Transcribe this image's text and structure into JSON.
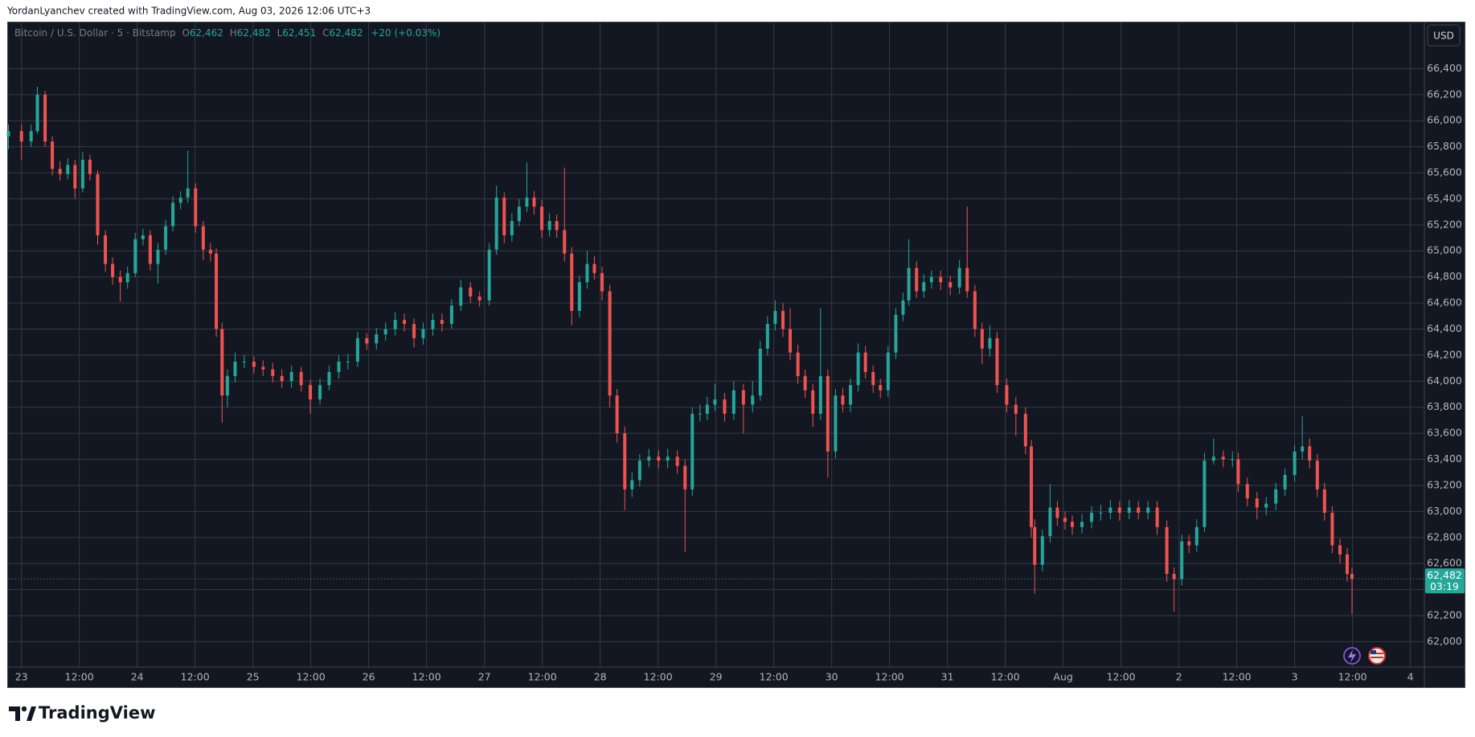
{
  "attribution": "YordanLyanchev created with TradingView.com, Aug 03, 2026 12:06 UTC+3",
  "branding": {
    "logo": "TradingView"
  },
  "currency": "USD",
  "chart_data": {
    "type": "candlestick",
    "header": {
      "symbol": "Bitcoin / U.S. Dollar · 5 · Bitstamp",
      "open_key": "O",
      "open": "62,462",
      "high_key": "H",
      "high": "62,482",
      "low_key": "L",
      "low": "62,451",
      "close_key": "C",
      "close": "62,482",
      "change": "+20 (+0.03%)"
    },
    "up_color": "#26a69a",
    "down_color": "#ef5350",
    "grid": true,
    "grid_color": "#363a45",
    "last_price": {
      "value": 62482,
      "label": "62,482",
      "countdown": "03:19"
    },
    "xlim": [
      -2.7,
      290.9
    ],
    "ylim": [
      61805,
      66754
    ],
    "xticks": [
      {
        "value": 0,
        "label": "23"
      },
      {
        "value": 12,
        "label": "12:00"
      },
      {
        "value": 24,
        "label": "24"
      },
      {
        "value": 36,
        "label": "12:00"
      },
      {
        "value": 48,
        "label": "25"
      },
      {
        "value": 60,
        "label": "12:00"
      },
      {
        "value": 72,
        "label": "26"
      },
      {
        "value": 84,
        "label": "12:00"
      },
      {
        "value": 96,
        "label": "27"
      },
      {
        "value": 108,
        "label": "12:00"
      },
      {
        "value": 120,
        "label": "28"
      },
      {
        "value": 132,
        "label": "12:00"
      },
      {
        "value": 144,
        "label": "29"
      },
      {
        "value": 156,
        "label": "12:00"
      },
      {
        "value": 168,
        "label": "30"
      },
      {
        "value": 180,
        "label": "12:00"
      },
      {
        "value": 192,
        "label": "31"
      },
      {
        "value": 204,
        "label": "12:00"
      },
      {
        "value": 216,
        "label": "Aug"
      },
      {
        "value": 228,
        "label": "12:00"
      },
      {
        "value": 240,
        "label": "2"
      },
      {
        "value": 252,
        "label": "12:00"
      },
      {
        "value": 264,
        "label": "3"
      },
      {
        "value": 276,
        "label": "12:00"
      },
      {
        "value": 288,
        "label": "4"
      }
    ],
    "yticks": [
      {
        "value": 62000,
        "label": "62,000"
      },
      {
        "value": 62200,
        "label": "62,200"
      },
      {
        "value": 62400,
        "label": "62,400"
      },
      {
        "value": 62600,
        "label": "62,600"
      },
      {
        "value": 62800,
        "label": "62,800"
      },
      {
        "value": 63000,
        "label": "63,000"
      },
      {
        "value": 63200,
        "label": "63,200"
      },
      {
        "value": 63400,
        "label": "63,400"
      },
      {
        "value": 63600,
        "label": "63,600"
      },
      {
        "value": 63800,
        "label": "63,800"
      },
      {
        "value": 64000,
        "label": "64,000"
      },
      {
        "value": 64200,
        "label": "64,200"
      },
      {
        "value": 64400,
        "label": "64,400"
      },
      {
        "value": 64600,
        "label": "64,600"
      },
      {
        "value": 64800,
        "label": "64,800"
      },
      {
        "value": 65000,
        "label": "65,000"
      },
      {
        "value": 65200,
        "label": "65,200"
      },
      {
        "value": 65400,
        "label": "65,400"
      },
      {
        "value": 65600,
        "label": "65,600"
      },
      {
        "value": 65800,
        "label": "65,800"
      },
      {
        "value": 66000,
        "label": "66,000"
      },
      {
        "value": 66200,
        "label": "66,200"
      },
      {
        "value": 66400,
        "label": "66,400"
      }
    ],
    "x": [
      -2.7,
      0,
      2.0,
      3.3,
      4.9,
      6.4,
      8.0,
      9.6,
      11.1,
      12.7,
      14.2,
      15.8,
      17.4,
      18.9,
      20.5,
      22.0,
      23.6,
      25.2,
      26.7,
      28.3,
      29.9,
      31.4,
      33.0,
      34.5,
      36.1,
      37.7,
      39.2,
      40.4,
      41.6,
      42.7,
      44.3,
      46.2,
      48.2,
      50.1,
      52.1,
      54.0,
      56.0,
      58.0,
      59.9,
      61.9,
      63.8,
      65.8,
      67.7,
      69.7,
      71.6,
      73.6,
      75.5,
      77.5,
      79.4,
      81.4,
      83.3,
      85.3,
      87.2,
      89.2,
      91.1,
      93.1,
      95.0,
      97.0,
      98.5,
      100.1,
      101.7,
      103.2,
      104.8,
      106.3,
      107.9,
      109.5,
      111.0,
      112.6,
      114.1,
      115.7,
      117.3,
      118.8,
      120.4,
      122.0,
      123.5,
      125.1,
      126.6,
      128.2,
      130.1,
      132.1,
      134.0,
      136.0,
      137.6,
      139.1,
      140.7,
      142.2,
      143.8,
      145.8,
      147.7,
      149.7,
      151.6,
      153.2,
      154.7,
      156.3,
      157.9,
      159.4,
      161.0,
      162.5,
      164.1,
      165.7,
      167.2,
      168.8,
      170.3,
      171.9,
      173.5,
      175.0,
      176.6,
      178.1,
      179.7,
      181.3,
      182.8,
      184.0,
      185.6,
      187.1,
      188.7,
      190.6,
      192.6,
      194.5,
      196.1,
      197.7,
      199.2,
      200.8,
      202.3,
      204.3,
      206.2,
      208.2,
      209.4,
      210.1,
      211.7,
      213.3,
      214.8,
      216.4,
      217.9,
      219.9,
      221.9,
      223.8,
      225.8,
      227.7,
      229.7,
      231.6,
      233.6,
      235.5,
      237.5,
      239.0,
      240.6,
      242.1,
      243.7,
      245.3,
      247.2,
      249.2,
      251.1,
      252.3,
      254.2,
      256.2,
      258.1,
      260.1,
      262.0,
      264.0,
      265.6,
      267.1,
      268.7,
      270.2,
      271.8,
      273.4,
      274.9,
      275.9
    ],
    "open": [
      65880,
      65920,
      65840,
      65920,
      66200,
      65840,
      65630,
      65590,
      65660,
      65480,
      65700,
      65590,
      65120,
      64900,
      64800,
      64760,
      64830,
      65090,
      65120,
      64900,
      65010,
      65190,
      65370,
      65410,
      65480,
      65190,
      65010,
      64980,
      64400,
      63890,
      64040,
      64150,
      64150,
      64110,
      64090,
      64040,
      64000,
      64070,
      63970,
      63860,
      63970,
      64070,
      64150,
      64150,
      64330,
      64290,
      64360,
      64400,
      64470,
      64440,
      64330,
      64400,
      64470,
      64440,
      64580,
      64720,
      64650,
      64620,
      65010,
      65410,
      65120,
      65230,
      65340,
      65410,
      65340,
      65160,
      65230,
      65160,
      64980,
      64540,
      64760,
      64900,
      64830,
      64690,
      63890,
      63600,
      63170,
      63240,
      63390,
      63420,
      63390,
      63420,
      63350,
      63170,
      63750,
      63750,
      63820,
      63860,
      63750,
      63930,
      63820,
      63890,
      64250,
      64440,
      64540,
      64400,
      64220,
      64040,
      63930,
      63750,
      64040,
      63460,
      63890,
      63820,
      63970,
      64220,
      64070,
      63970,
      63930,
      64220,
      64510,
      64620,
      64870,
      64690,
      64760,
      64800,
      64760,
      64720,
      64870,
      64690,
      64400,
      64250,
      64330,
      63970,
      63820,
      63750,
      63500,
      62880,
      62590,
      62810,
      63030,
      62950,
      62920,
      62880,
      62920,
      62990,
      62990,
      63030,
      62990,
      63030,
      62990,
      63030,
      62880,
      62520,
      62480,
      62770,
      62740,
      62880,
      63390,
      63420,
      63400,
      63400,
      63210,
      63100,
      63030,
      63060,
      63170,
      63280,
      63460,
      63500,
      63390,
      63170,
      62990,
      62740,
      62670,
      62520
    ],
    "high": [
      65970,
      65970,
      65970,
      66260,
      66230,
      65880,
      65690,
      65710,
      65700,
      65760,
      65740,
      65620,
      65160,
      64950,
      64850,
      64880,
      65140,
      65170,
      65160,
      65060,
      65240,
      65420,
      65460,
      65770,
      65520,
      65230,
      65060,
      65020,
      64450,
      64090,
      64220,
      64200,
      64190,
      64160,
      64140,
      64090,
      64120,
      64110,
      64010,
      64020,
      64120,
      64200,
      64210,
      64380,
      64370,
      64410,
      64450,
      64530,
      64520,
      64480,
      64450,
      64520,
      64520,
      64630,
      64780,
      64760,
      64690,
      65060,
      65500,
      65450,
      65290,
      65400,
      65680,
      65460,
      65390,
      65290,
      65280,
      65640,
      65030,
      64810,
      65000,
      64960,
      64880,
      64740,
      63940,
      63650,
      63300,
      63440,
      63480,
      63470,
      63480,
      63470,
      63400,
      63800,
      63820,
      63880,
      63980,
      63910,
      64000,
      63980,
      64000,
      64310,
      64500,
      64620,
      64600,
      64560,
      64280,
      64090,
      63980,
      64560,
      64090,
      63940,
      63950,
      64020,
      64290,
      64270,
      64120,
      64020,
      64270,
      64560,
      64680,
      65090,
      64920,
      64820,
      64850,
      64850,
      64810,
      64930,
      65340,
      64740,
      64450,
      64430,
      64380,
      64020,
      63880,
      63800,
      63550,
      62940,
      62860,
      63210,
      63080,
      63000,
      62970,
      62980,
      63040,
      63050,
      63090,
      63080,
      63090,
      63080,
      63080,
      63080,
      62930,
      62570,
      62820,
      62820,
      62940,
      63450,
      63560,
      63470,
      63460,
      63450,
      63260,
      63150,
      63110,
      63220,
      63330,
      63510,
      63730,
      63560,
      63440,
      63220,
      63040,
      62790,
      62720,
      62570
    ],
    "low": [
      65780,
      65700,
      65800,
      65900,
      65800,
      65580,
      65540,
      65550,
      65400,
      65450,
      65540,
      65050,
      64840,
      64740,
      64610,
      64710,
      64800,
      65040,
      64850,
      64750,
      64970,
      65150,
      65320,
      65370,
      65140,
      64930,
      64920,
      64340,
      63680,
      63800,
      63990,
      64100,
      64060,
      64040,
      63990,
      63950,
      63950,
      63920,
      63750,
      63820,
      63930,
      64020,
      64090,
      64110,
      64240,
      64240,
      64310,
      64350,
      64380,
      64260,
      64280,
      64350,
      64380,
      64400,
      64540,
      64600,
      64570,
      64580,
      64970,
      65060,
      65070,
      65190,
      65300,
      65280,
      65100,
      65110,
      65100,
      64920,
      64430,
      64490,
      64710,
      64780,
      64620,
      63800,
      63530,
      63010,
      63110,
      63190,
      63340,
      63330,
      63330,
      63290,
      62690,
      63120,
      63690,
      63700,
      63770,
      63690,
      63700,
      63600,
      63760,
      63850,
      64200,
      64390,
      64340,
      64160,
      63980,
      63870,
      63650,
      63700,
      63260,
      63410,
      63760,
      63760,
      63920,
      64020,
      63910,
      63870,
      63880,
      64170,
      64460,
      64580,
      64640,
      64640,
      64710,
      64700,
      64660,
      64670,
      64640,
      64340,
      64130,
      64190,
      63910,
      63760,
      63580,
      63440,
      62800,
      62370,
      62540,
      62760,
      62890,
      62860,
      62820,
      62830,
      62870,
      62930,
      62940,
      62930,
      62940,
      62940,
      62940,
      62820,
      62460,
      62230,
      62430,
      62680,
      62690,
      62840,
      63360,
      63340,
      63340,
      63150,
      63040,
      62940,
      62970,
      63010,
      63120,
      63230,
      63400,
      63330,
      63110,
      62930,
      62680,
      62600,
      62460,
      62210
    ],
    "close": [
      65920,
      65840,
      65920,
      66200,
      65840,
      65630,
      65590,
      65660,
      65480,
      65700,
      65590,
      65120,
      64900,
      64800,
      64760,
      64830,
      65090,
      65120,
      64900,
      65010,
      65190,
      65370,
      65410,
      65480,
      65190,
      65010,
      64980,
      64400,
      63890,
      64040,
      64150,
      64150,
      64110,
      64090,
      64040,
      64000,
      64070,
      63970,
      63860,
      63970,
      64070,
      64150,
      64150,
      64330,
      64290,
      64360,
      64400,
      64470,
      64440,
      64330,
      64400,
      64470,
      64440,
      64580,
      64720,
      64650,
      64620,
      65010,
      65410,
      65120,
      65230,
      65340,
      65410,
      65340,
      65160,
      65230,
      65160,
      64980,
      64540,
      64760,
      64900,
      64830,
      64690,
      63890,
      63600,
      63170,
      63240,
      63390,
      63420,
      63390,
      63420,
      63350,
      63170,
      63750,
      63750,
      63820,
      63860,
      63750,
      63930,
      63820,
      63890,
      64250,
      64440,
      64540,
      64400,
      64220,
      64040,
      63930,
      63750,
      64040,
      63460,
      63890,
      63820,
      63970,
      64220,
      64070,
      63970,
      63930,
      64220,
      64510,
      64620,
      64870,
      64690,
      64760,
      64800,
      64760,
      64720,
      64870,
      64690,
      64400,
      64250,
      64330,
      63970,
      63820,
      63750,
      63500,
      62880,
      62590,
      62810,
      63030,
      62950,
      62920,
      62880,
      62920,
      62990,
      62990,
      63030,
      62990,
      63030,
      62990,
      63030,
      62880,
      62520,
      62480,
      62770,
      62740,
      62880,
      63390,
      63420,
      63400,
      63400,
      63210,
      63100,
      63030,
      63060,
      63170,
      63280,
      63460,
      63500,
      63390,
      63170,
      62990,
      62740,
      62670,
      62520,
      62482
    ]
  }
}
